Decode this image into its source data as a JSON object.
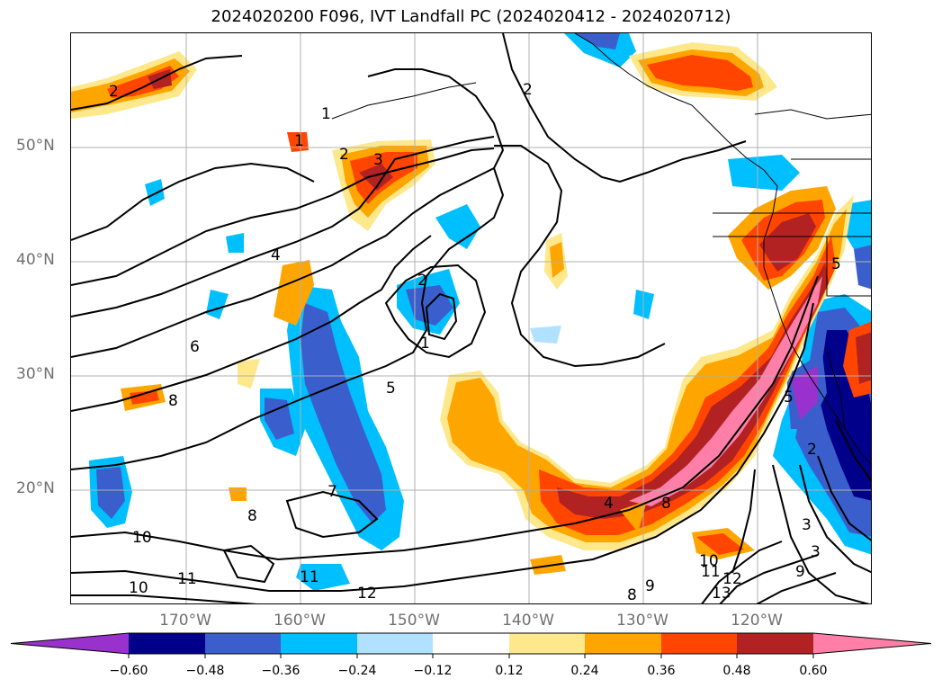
{
  "title": "2024020200 F096, IVT Landfall PC (2024020412 - 2024020712)",
  "lat_labels": [
    "50°N",
    "40°N",
    "30°N",
    "20°N"
  ],
  "lon_labels": [
    "170°W",
    "160°W",
    "150°W",
    "140°W",
    "130°W",
    "120°W"
  ],
  "colorbar": {
    "colors": [
      "#9932cc",
      "#00008b",
      "#3a5fcd",
      "#00bfff",
      "#b0e2ff",
      "#ffffff",
      "#fee88b",
      "#ffa500",
      "#ff4500",
      "#b22222",
      "#ff7fa8"
    ],
    "ticks": [
      "−0.60",
      "−0.48",
      "−0.36",
      "−0.24",
      "−0.12",
      "0.12",
      "0.24",
      "0.36",
      "0.48",
      "0.60"
    ]
  },
  "contour_labels": [
    "2",
    "1",
    "1",
    "2",
    "3",
    "2",
    "4",
    "6",
    "8",
    "2",
    "1",
    "5",
    "5",
    "8",
    "7",
    "10",
    "10",
    "11",
    "11",
    "12",
    "4",
    "8",
    "10",
    "11",
    "12",
    "13",
    "9",
    "8",
    "9",
    "3",
    "3",
    "2",
    "5"
  ],
  "map_meta": {
    "lon_range": [
      -180,
      -110
    ],
    "lat_range": [
      10,
      60
    ]
  }
}
